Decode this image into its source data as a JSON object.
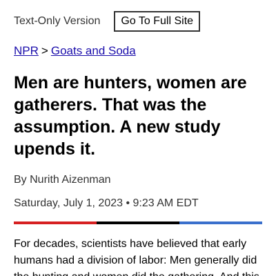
{
  "topbar": {
    "text_only_label": "Text-Only Version",
    "full_site_button": "Go To Full Site"
  },
  "breadcrumb": {
    "home_link": "NPR",
    "separator": ">",
    "section_link": "Goats and Soda"
  },
  "article": {
    "headline": "Men are hunters, women are gatherers. That was the assumption. A new study upends it.",
    "byline": "By Nurith Aizenman",
    "dateline": "Saturday, July 1, 2023 • 9:23 AM EDT",
    "body_visible": "For decades, scientists have believed that early humans had a division of labor: Men generally did the hunting and women did the gathering. And this"
  },
  "colors": {
    "rule_red": "#d62021",
    "rule_black": "#000000",
    "rule_blue": "#3a6fcc",
    "link": "#1a0dab"
  }
}
